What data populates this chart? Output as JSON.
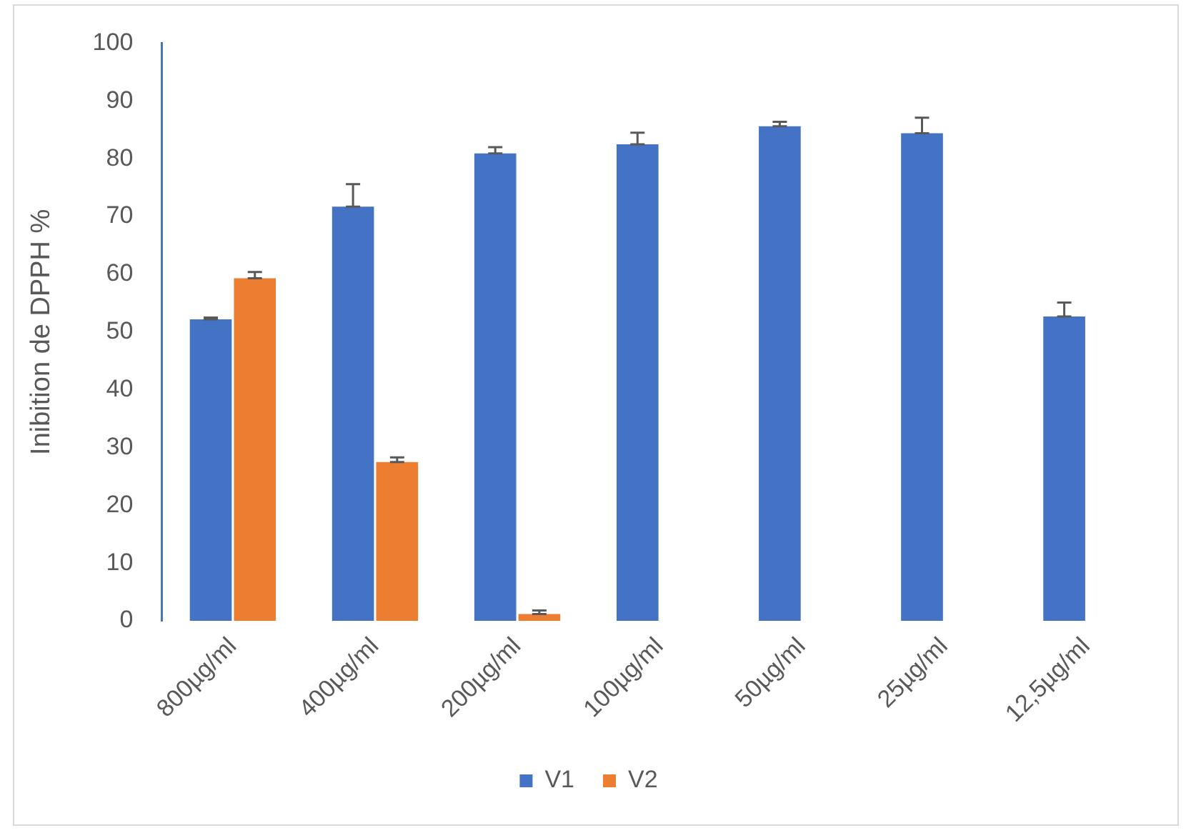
{
  "chart_data": {
    "type": "bar",
    "ylabel": "Inibition de DPPH %",
    "categories": [
      "800µg/ml",
      "400µg/ml",
      "200µg/ml",
      "100µg/ml",
      "50µg/ml",
      "25µg/ml",
      "12,5µg/ml"
    ],
    "series": [
      {
        "name": "V1",
        "color": "#4472c4",
        "values": [
          52.2,
          71.7,
          80.9,
          82.5,
          85.6,
          84.4,
          52.7
        ],
        "errors": [
          [
            52.2,
            52.5
          ],
          [
            71.7,
            75.6
          ],
          [
            80.9,
            82.0
          ],
          [
            82.5,
            84.5
          ],
          [
            85.6,
            86.4
          ],
          [
            84.4,
            87.1
          ],
          [
            52.7,
            55.1
          ]
        ]
      },
      {
        "name": "V2",
        "color": "#ed7d31",
        "values": [
          59.3,
          27.5,
          1.2,
          null,
          null,
          null,
          null
        ],
        "errors": [
          [
            59.3,
            60.4
          ],
          [
            27.5,
            28.3
          ],
          [
            1.2,
            1.8
          ],
          null,
          null,
          null,
          null
        ]
      }
    ],
    "ylim": [
      0,
      100
    ],
    "yticks": [
      0,
      10,
      20,
      30,
      40,
      50,
      60,
      70,
      80,
      90,
      100
    ],
    "grid": false,
    "legend": "bottom"
  }
}
